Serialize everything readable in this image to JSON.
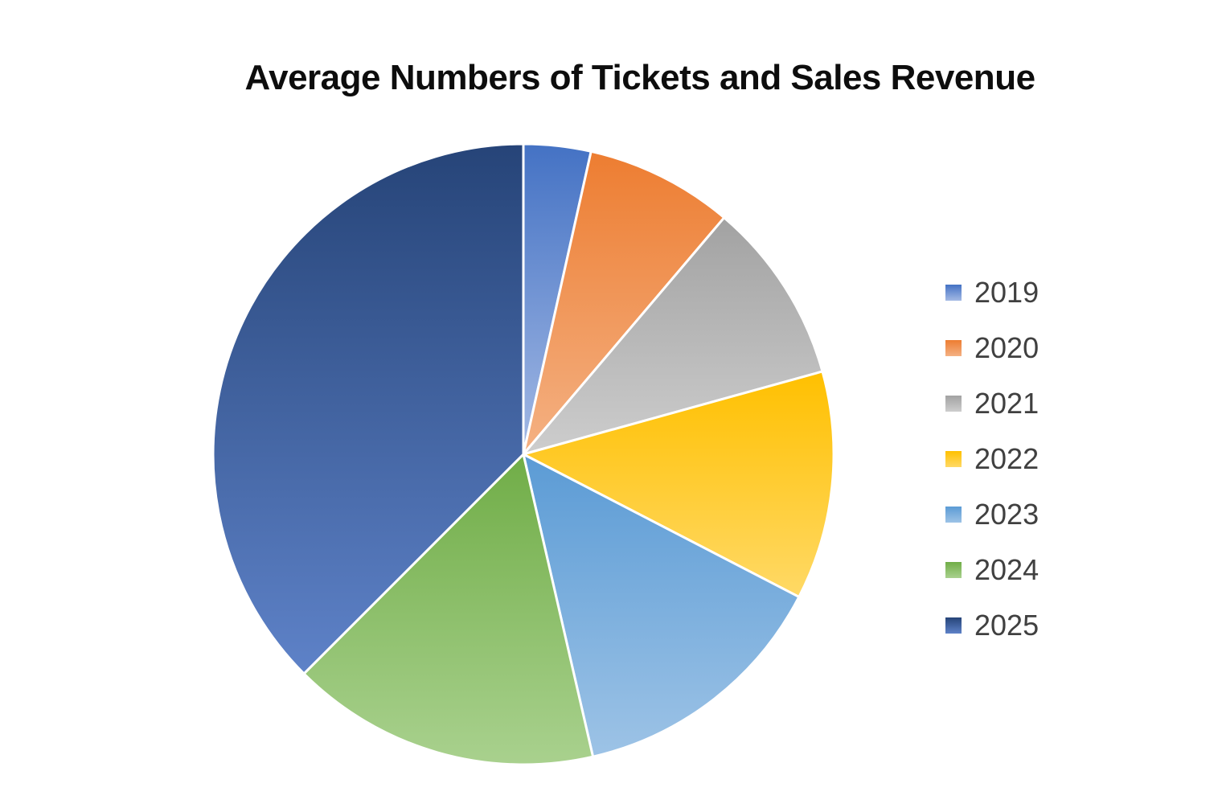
{
  "chart_data": {
    "type": "pie",
    "title": "Average Numbers of Tickets and Sales Revenue",
    "categories": [
      "2019",
      "2020",
      "2021",
      "2022",
      "2023",
      "2024",
      "2025"
    ],
    "values": [
      3.5,
      7.7,
      9.5,
      11.9,
      13.8,
      16.1,
      37.5
    ],
    "value_unit": "percent of pie, estimated from slice angles",
    "start_angle_deg": 0,
    "direction": "clockwise",
    "legend_position": "right",
    "title_color": "#0D0D0D",
    "legend_text_color": "#404040",
    "slice_border_color": "#FFFFFF",
    "slice_colors": [
      [
        "#4472C4",
        "#A3B9E4"
      ],
      [
        "#ED7D31",
        "#F4B183"
      ],
      [
        "#A2A2A2",
        "#CDCDCD"
      ],
      [
        "#FFC000",
        "#FFD966"
      ],
      [
        "#5B9BD5",
        "#9DC3E6"
      ],
      [
        "#70AD47",
        "#A9D18E"
      ],
      [
        "#264478",
        "#5E82C8"
      ]
    ]
  }
}
